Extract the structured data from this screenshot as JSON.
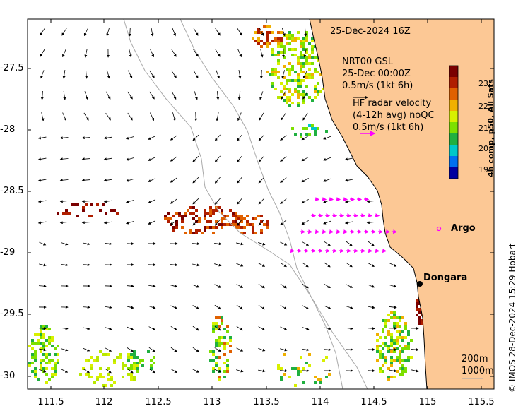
{
  "map": {
    "timestamp_title": "25-Dec-2024 16Z",
    "lon_ticks": [
      "111.5",
      "112",
      "112.5",
      "113",
      "113.5",
      "114",
      "114.5",
      "115",
      "115.5"
    ],
    "lat_ticks": [
      "-27.5",
      "-28",
      "-28.5",
      "-29",
      "-29.5",
      "-30"
    ],
    "legend": {
      "model_line1": "NRT00 GSL",
      "model_line2": "25-Dec 00:00Z",
      "model_scale": "0.5m/s (1kt 6h)",
      "radar_line1": "HF radar velocity",
      "radar_line2": "(4-12h avg) noQC",
      "radar_scale": "0.5m/s (1kt 6h)"
    },
    "colorbar": {
      "label": "4h comp, p50, All Sats",
      "ticks": [
        "23",
        "22",
        "21",
        "20",
        "19"
      ],
      "colors": [
        "#7a0000",
        "#b01e00",
        "#e06000",
        "#f0b000",
        "#d8f000",
        "#7de000",
        "#20b040",
        "#00c8c8",
        "#0070f0",
        "#0000a0"
      ]
    },
    "places": {
      "argo": "Argo",
      "dongara": "Dongara"
    },
    "contours": {
      "c200": "200m",
      "c1000": "1000m"
    },
    "copyright": "© IMOS 28-Dec-2024 15:29 Hobart",
    "colors": {
      "land": "#fcc895",
      "radar": "#ff00ff",
      "bathy": "#a9a9a9"
    }
  }
}
